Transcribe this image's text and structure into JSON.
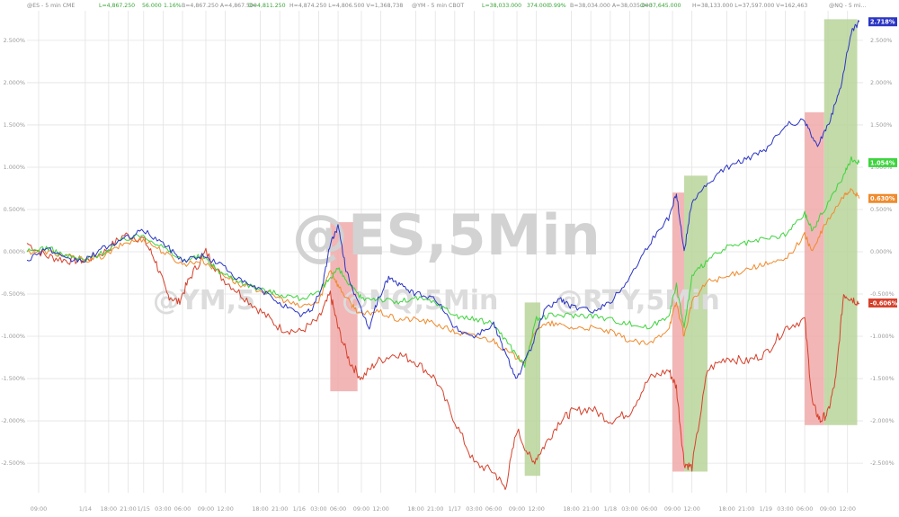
{
  "header": {
    "es": "@ES - 5 min  CME",
    "es_last": "L=4,867.250",
    "es_chg": "56.000",
    "es_pct": "1.16%",
    "es_rest": "B=4,867.250  A=4,867.500",
    "es_open": "O=4,811.250",
    "es_rest2": "H=4,874.250  L=4,806.500  V=1,368,738",
    "ym": "@YM - 5 min  CBOT",
    "ym_last": "L=38,033.000",
    "ym_chg": "374.000",
    "ym_pct": "0.99%",
    "ym_rest": "B=38,034.000  A=38,035.000",
    "ym_open": "O=37,645.000",
    "ym_rest2": "H=38,133.000  L=37,597.000  V=162,463",
    "nq": "@NQ - 5 mi..."
  },
  "watermarks": {
    "main": "@ES,5Min",
    "ym": "@YM,5",
    "nq": "@NQ,5Min",
    "rty": "@RTY,5Min"
  },
  "colors": {
    "nq": "#2b35c4",
    "rty": "#d6412c",
    "ym": "#3ed43e",
    "es": "#f08a2c",
    "red_band": "#f0a9a9",
    "green_band": "#b8d49a",
    "grid": "#e3e3e3"
  },
  "chart_data": {
    "type": "line",
    "y_unit": "percent",
    "ylim": [
      -2.85,
      2.85
    ],
    "y_ticks": [
      "2.500%",
      "2.000%",
      "1.500%",
      "1.000%",
      "0.500%",
      "0.000%",
      "-0.500%",
      "-1.000%",
      "-1.500%",
      "-2.000%",
      "-2.500%"
    ],
    "y_tick_values": [
      2.5,
      2.0,
      1.5,
      1.0,
      0.5,
      0.0,
      -0.5,
      -1.0,
      -1.5,
      -2.0,
      -2.5
    ],
    "x_ticks": [
      "09:00",
      "1/14",
      "18:00",
      "21:00",
      "1/15",
      "03:00",
      "06:00",
      "09:00",
      "12:00",
      "18:00",
      "21:00",
      "1/16",
      "03:00",
      "06:00",
      "09:00",
      "12:00",
      "18:00",
      "21:00",
      "1/17",
      "03:00",
      "06:00",
      "09:00",
      "12:00",
      "18:00",
      "21:00",
      "1/18",
      "03:00",
      "06:00",
      "09:00",
      "12:00",
      "18:00",
      "21:00",
      "1/19",
      "03:00",
      "06:00",
      "09:00",
      "12:00"
    ],
    "x_tick_values": [
      0.3,
      1.5,
      2.1,
      2.6,
      3.0,
      3.5,
      4.0,
      4.6,
      5.1,
      6.0,
      6.5,
      7.0,
      7.5,
      8.0,
      8.6,
      9.1,
      10.0,
      10.5,
      11.0,
      11.5,
      12.0,
      12.6,
      13.1,
      14.0,
      14.5,
      15.0,
      15.5,
      16.0,
      16.6,
      17.1,
      18.0,
      18.5,
      19.0,
      19.5,
      20.0,
      20.6,
      21.1
    ],
    "xlim": [
      0,
      21.5
    ],
    "series": [
      {
        "key": "nq",
        "last_label": "2.718%",
        "points": [
          [
            0,
            -0.1
          ],
          [
            0.5,
            0.05
          ],
          [
            1,
            -0.1
          ],
          [
            1.5,
            -0.1
          ],
          [
            2,
            0.05
          ],
          [
            2.5,
            0.15
          ],
          [
            3,
            0.25
          ],
          [
            3.5,
            0.1
          ],
          [
            4,
            -0.1
          ],
          [
            4.5,
            -0.05
          ],
          [
            5,
            -0.15
          ],
          [
            5.5,
            -0.35
          ],
          [
            6,
            -0.45
          ],
          [
            6.5,
            -0.6
          ],
          [
            7,
            -0.75
          ],
          [
            7.3,
            -0.7
          ],
          [
            7.6,
            -0.4
          ],
          [
            7.8,
            0.1
          ],
          [
            8,
            0.3
          ],
          [
            8.2,
            -0.2
          ],
          [
            8.5,
            -0.6
          ],
          [
            8.8,
            -0.9
          ],
          [
            9.0,
            -0.6
          ],
          [
            9.3,
            -0.3
          ],
          [
            9.6,
            -0.4
          ],
          [
            10,
            -0.5
          ],
          [
            10.5,
            -0.55
          ],
          [
            11,
            -0.9
          ],
          [
            11.5,
            -1.0
          ],
          [
            12,
            -0.85
          ],
          [
            12.3,
            -1.2
          ],
          [
            12.6,
            -1.5
          ],
          [
            13.0,
            -1.1
          ],
          [
            13.3,
            -0.7
          ],
          [
            13.7,
            -0.55
          ],
          [
            14,
            -0.65
          ],
          [
            14.5,
            -0.7
          ],
          [
            15,
            -0.6
          ],
          [
            15.5,
            -0.3
          ],
          [
            16,
            0.1
          ],
          [
            16.5,
            0.4
          ],
          [
            16.7,
            0.7
          ],
          [
            16.9,
            0.0
          ],
          [
            17.1,
            0.6
          ],
          [
            17.5,
            0.8
          ],
          [
            18,
            1.0
          ],
          [
            18.5,
            1.1
          ],
          [
            19,
            1.2
          ],
          [
            19.5,
            1.5
          ],
          [
            20,
            1.55
          ],
          [
            20.3,
            1.25
          ],
          [
            20.6,
            1.5
          ],
          [
            20.9,
            1.9
          ],
          [
            21.2,
            2.6
          ],
          [
            21.4,
            2.72
          ]
        ]
      },
      {
        "key": "ym",
        "last_label": "1.054%",
        "points": [
          [
            0,
            0.0
          ],
          [
            0.5,
            0.05
          ],
          [
            1,
            -0.05
          ],
          [
            1.5,
            -0.1
          ],
          [
            2,
            0.0
          ],
          [
            2.5,
            0.15
          ],
          [
            3,
            0.2
          ],
          [
            3.5,
            0.05
          ],
          [
            4,
            -0.1
          ],
          [
            4.5,
            -0.05
          ],
          [
            5,
            -0.25
          ],
          [
            5.5,
            -0.35
          ],
          [
            6,
            -0.45
          ],
          [
            6.5,
            -0.5
          ],
          [
            7,
            -0.55
          ],
          [
            7.5,
            -0.5
          ],
          [
            7.8,
            -0.3
          ],
          [
            8,
            -0.2
          ],
          [
            8.3,
            -0.4
          ],
          [
            8.6,
            -0.55
          ],
          [
            9,
            -0.55
          ],
          [
            9.5,
            -0.6
          ],
          [
            10,
            -0.55
          ],
          [
            10.5,
            -0.6
          ],
          [
            11,
            -0.75
          ],
          [
            11.5,
            -0.8
          ],
          [
            12,
            -0.85
          ],
          [
            12.4,
            -1.1
          ],
          [
            12.8,
            -1.35
          ],
          [
            13.1,
            -0.8
          ],
          [
            13.5,
            -0.75
          ],
          [
            14,
            -0.75
          ],
          [
            14.5,
            -0.75
          ],
          [
            15,
            -0.8
          ],
          [
            15.5,
            -0.85
          ],
          [
            16,
            -0.9
          ],
          [
            16.5,
            -0.75
          ],
          [
            16.7,
            -0.4
          ],
          [
            16.9,
            -0.9
          ],
          [
            17.1,
            -0.3
          ],
          [
            17.5,
            -0.1
          ],
          [
            18,
            0.05
          ],
          [
            18.5,
            0.1
          ],
          [
            19,
            0.15
          ],
          [
            19.5,
            0.2
          ],
          [
            20,
            0.45
          ],
          [
            20.2,
            0.25
          ],
          [
            20.5,
            0.5
          ],
          [
            21,
            0.9
          ],
          [
            21.2,
            1.1
          ],
          [
            21.4,
            1.054
          ]
        ]
      },
      {
        "key": "es",
        "last_label": "0.630%",
        "points": [
          [
            0,
            0.0
          ],
          [
            0.5,
            0.0
          ],
          [
            1,
            -0.05
          ],
          [
            1.5,
            -0.1
          ],
          [
            2,
            -0.05
          ],
          [
            2.5,
            0.1
          ],
          [
            3,
            0.15
          ],
          [
            3.5,
            0.0
          ],
          [
            4,
            -0.15
          ],
          [
            4.5,
            -0.1
          ],
          [
            5,
            -0.25
          ],
          [
            5.5,
            -0.4
          ],
          [
            6,
            -0.45
          ],
          [
            6.5,
            -0.55
          ],
          [
            7,
            -0.65
          ],
          [
            7.5,
            -0.6
          ],
          [
            7.8,
            -0.2
          ],
          [
            8,
            -0.4
          ],
          [
            8.3,
            -0.6
          ],
          [
            8.6,
            -0.75
          ],
          [
            9,
            -0.7
          ],
          [
            9.5,
            -0.8
          ],
          [
            10,
            -0.8
          ],
          [
            10.5,
            -0.85
          ],
          [
            11,
            -0.95
          ],
          [
            11.5,
            -1.0
          ],
          [
            12,
            -1.05
          ],
          [
            12.4,
            -1.2
          ],
          [
            12.8,
            -1.3
          ],
          [
            13.1,
            -0.9
          ],
          [
            13.5,
            -0.85
          ],
          [
            14,
            -0.9
          ],
          [
            14.5,
            -0.9
          ],
          [
            15,
            -0.95
          ],
          [
            15.5,
            -1.05
          ],
          [
            16,
            -1.1
          ],
          [
            16.5,
            -0.9
          ],
          [
            16.7,
            -0.6
          ],
          [
            16.9,
            -1.0
          ],
          [
            17.1,
            -0.6
          ],
          [
            17.5,
            -0.35
          ],
          [
            18,
            -0.3
          ],
          [
            18.5,
            -0.2
          ],
          [
            19,
            -0.15
          ],
          [
            19.5,
            -0.1
          ],
          [
            20,
            0.2
          ],
          [
            20.2,
            0.0
          ],
          [
            20.5,
            0.3
          ],
          [
            21,
            0.65
          ],
          [
            21.2,
            0.75
          ],
          [
            21.4,
            0.63
          ]
        ]
      },
      {
        "key": "rty",
        "last_label": "-0.606%",
        "points": [
          [
            0,
            0.1
          ],
          [
            0.5,
            -0.05
          ],
          [
            1,
            -0.1
          ],
          [
            1.5,
            -0.1
          ],
          [
            2,
            0.0
          ],
          [
            2.5,
            0.2
          ],
          [
            3,
            0.15
          ],
          [
            3.3,
            -0.1
          ],
          [
            3.6,
            -0.5
          ],
          [
            3.9,
            -0.6
          ],
          [
            4.2,
            -0.3
          ],
          [
            4.6,
            0.0
          ],
          [
            5,
            -0.3
          ],
          [
            5.5,
            -0.5
          ],
          [
            6,
            -0.7
          ],
          [
            6.5,
            -0.9
          ],
          [
            7,
            -0.95
          ],
          [
            7.5,
            -0.8
          ],
          [
            7.8,
            -0.5
          ],
          [
            8,
            -0.9
          ],
          [
            8.3,
            -1.3
          ],
          [
            8.6,
            -1.5
          ],
          [
            9,
            -1.3
          ],
          [
            9.5,
            -1.2
          ],
          [
            10,
            -1.3
          ],
          [
            10.5,
            -1.5
          ],
          [
            11,
            -2.0
          ],
          [
            11.5,
            -2.5
          ],
          [
            12,
            -2.6
          ],
          [
            12.3,
            -2.8
          ],
          [
            12.6,
            -2.1
          ],
          [
            13.0,
            -2.5
          ],
          [
            13.3,
            -2.3
          ],
          [
            13.7,
            -2.0
          ],
          [
            14,
            -1.9
          ],
          [
            14.5,
            -1.85
          ],
          [
            15,
            -2.0
          ],
          [
            15.5,
            -1.9
          ],
          [
            16,
            -1.5
          ],
          [
            16.5,
            -1.4
          ],
          [
            16.7,
            -1.6
          ],
          [
            16.9,
            -2.5
          ],
          [
            17.1,
            -2.55
          ],
          [
            17.5,
            -1.4
          ],
          [
            18,
            -1.25
          ],
          [
            18.5,
            -1.3
          ],
          [
            19,
            -1.2
          ],
          [
            19.5,
            -0.9
          ],
          [
            20,
            -0.8
          ],
          [
            20.2,
            -1.8
          ],
          [
            20.4,
            -2.0
          ],
          [
            20.6,
            -1.9
          ],
          [
            20.8,
            -1.5
          ],
          [
            21,
            -0.5
          ],
          [
            21.2,
            -0.55
          ],
          [
            21.4,
            -0.606
          ]
        ]
      }
    ],
    "bands": [
      {
        "color": "red",
        "x0": 7.8,
        "x1": 8.5,
        "y0": 0.35,
        "y1": -1.65
      },
      {
        "color": "green",
        "x0": 12.8,
        "x1": 13.2,
        "y0": -0.6,
        "y1": -2.65
      },
      {
        "color": "red",
        "x0": 16.6,
        "x1": 16.9,
        "y0": 0.7,
        "y1": -2.6
      },
      {
        "color": "green",
        "x0": 16.9,
        "x1": 17.5,
        "y0": 0.9,
        "y1": -2.6
      },
      {
        "color": "red",
        "x0": 20.0,
        "x1": 20.5,
        "y0": 1.65,
        "y1": -2.05
      },
      {
        "color": "green",
        "x0": 20.5,
        "x1": 21.35,
        "y0": 2.75,
        "y1": -2.05
      }
    ]
  }
}
